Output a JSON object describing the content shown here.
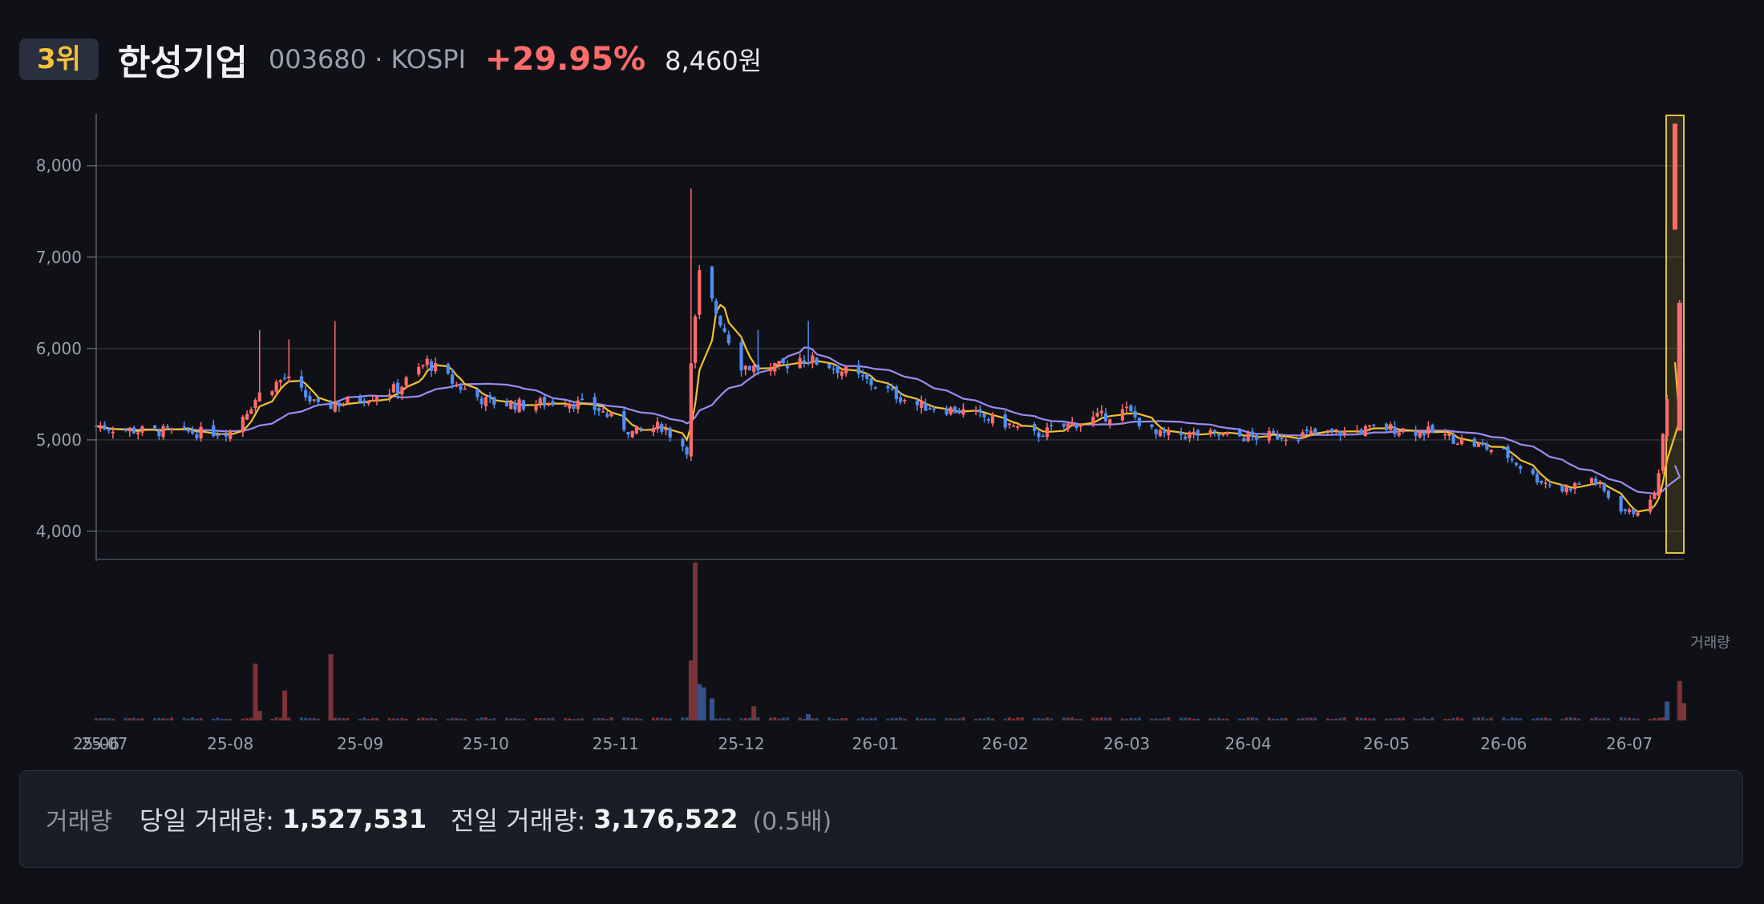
{
  "header": {
    "rank": "3위",
    "name": "한성기업",
    "code_market": "003680 · KOSPI",
    "change_pct": "+29.95%",
    "price": "8,460원"
  },
  "info": {
    "label": "거래량",
    "today_label": "당일 거래량:",
    "today_value": "1,527,531",
    "prev_label": "전일 거래량:",
    "prev_value": "3,176,522",
    "ratio": "(0.5배)"
  },
  "colors": {
    "up": "#ff6b6b",
    "down": "#4f8ef7",
    "ma_short": "#f2c12e",
    "ma_long": "#9b8cf0",
    "highlight": "#e0c23a"
  },
  "chart_data": {
    "type": "candlestick",
    "ylim": [
      3850,
      8550
    ],
    "y_ticks": [
      4000,
      5000,
      6000,
      7000,
      8000
    ],
    "y_tick_labels": [
      "4,000",
      "5,000",
      "6,000",
      "7,000",
      "8,000"
    ],
    "x_tick_labels": [
      "25-06",
      "25-07",
      "25-08",
      "25-09",
      "25-10",
      "25-11",
      "25-12",
      "26-01",
      "26-02",
      "26-03",
      "26-04",
      "26-05",
      "26-06",
      "26-07"
    ],
    "x_tick_dates": [
      "2025-06-30",
      "2025-07-02",
      "2025-08-01",
      "2025-09-01",
      "2025-10-01",
      "2025-11-01",
      "2025-12-01",
      "2026-01-02",
      "2026-02-02",
      "2026-03-03",
      "2026-04-01",
      "2026-05-04",
      "2026-06-01",
      "2026-07-01"
    ],
    "volume_label": "거래량",
    "price_path": [
      [
        "2025-06-30",
        5150
      ],
      [
        "2025-07-10",
        5100
      ],
      [
        "2025-07-25",
        5080
      ],
      [
        "2025-08-01",
        5100
      ],
      [
        "2025-08-08",
        5500
      ],
      [
        "2025-08-14",
        5680
      ],
      [
        "2025-08-22",
        5350
      ],
      [
        "2025-09-01",
        5450
      ],
      [
        "2025-09-10",
        5560
      ],
      [
        "2025-09-17",
        5850
      ],
      [
        "2025-09-24",
        5600
      ],
      [
        "2025-10-01",
        5420
      ],
      [
        "2025-10-10",
        5380
      ],
      [
        "2025-10-20",
        5430
      ],
      [
        "2025-10-28",
        5330
      ],
      [
        "2025-11-05",
        5080
      ],
      [
        "2025-11-12",
        5150
      ],
      [
        "2025-11-18",
        4900
      ],
      [
        "2025-11-19",
        5800
      ],
      [
        "2025-11-21",
        6800
      ],
      [
        "2025-11-25",
        6400
      ],
      [
        "2025-12-01",
        5820
      ],
      [
        "2025-12-08",
        5750
      ],
      [
        "2025-12-15",
        5900
      ],
      [
        "2025-12-22",
        5820
      ],
      [
        "2026-01-02",
        5600
      ],
      [
        "2026-01-12",
        5380
      ],
      [
        "2026-01-22",
        5320
      ],
      [
        "2026-02-02",
        5180
      ],
      [
        "2026-02-09",
        5050
      ],
      [
        "2026-02-20",
        5200
      ],
      [
        "2026-03-03",
        5320
      ],
      [
        "2026-03-10",
        5050
      ],
      [
        "2026-03-20",
        5060
      ],
      [
        "2026-04-01",
        5030
      ],
      [
        "2026-04-20",
        5070
      ],
      [
        "2026-05-04",
        5130
      ],
      [
        "2026-05-15",
        5080
      ],
      [
        "2026-05-25",
        4950
      ],
      [
        "2026-06-01",
        4860
      ],
      [
        "2026-06-08",
        4600
      ],
      [
        "2026-06-15",
        4450
      ],
      [
        "2026-06-22",
        4580
      ],
      [
        "2026-06-28",
        4280
      ],
      [
        "2026-07-01",
        4200
      ],
      [
        "2026-07-06",
        4300
      ],
      [
        "2026-07-08",
        4600
      ],
      [
        "2026-07-09",
        5050
      ],
      [
        "2026-07-10",
        5500
      ],
      [
        "2026-07-13",
        6500
      ],
      [
        "2026-07-14",
        7500
      ]
    ],
    "spikes": [
      [
        "2025-08-08",
        6200
      ],
      [
        "2025-08-15",
        6100
      ],
      [
        "2025-08-26",
        6300
      ],
      [
        "2025-11-19",
        7750
      ],
      [
        "2025-12-05",
        6200
      ],
      [
        "2025-12-17",
        6300
      ]
    ],
    "last_candle": {
      "date": "2026-07-14",
      "open": 7300,
      "high": 8460,
      "low": 7300,
      "close": 8460
    },
    "volume_spikes": [
      [
        "2025-08-07",
        0.36
      ],
      [
        "2025-08-08",
        0.06
      ],
      [
        "2025-08-14",
        0.19
      ],
      [
        "2025-08-25",
        0.42
      ],
      [
        "2025-11-19",
        0.38
      ],
      [
        "2025-11-20",
        1.0
      ],
      [
        "2025-11-21",
        0.23
      ],
      [
        "2025-11-22",
        0.21
      ],
      [
        "2025-11-24",
        0.14
      ],
      [
        "2025-12-04",
        0.09
      ],
      [
        "2025-12-17",
        0.04
      ],
      [
        "2026-07-09",
        0.02
      ],
      [
        "2026-07-10",
        0.12
      ],
      [
        "2026-07-13",
        0.25
      ],
      [
        "2026-07-14",
        0.11
      ]
    ]
  }
}
